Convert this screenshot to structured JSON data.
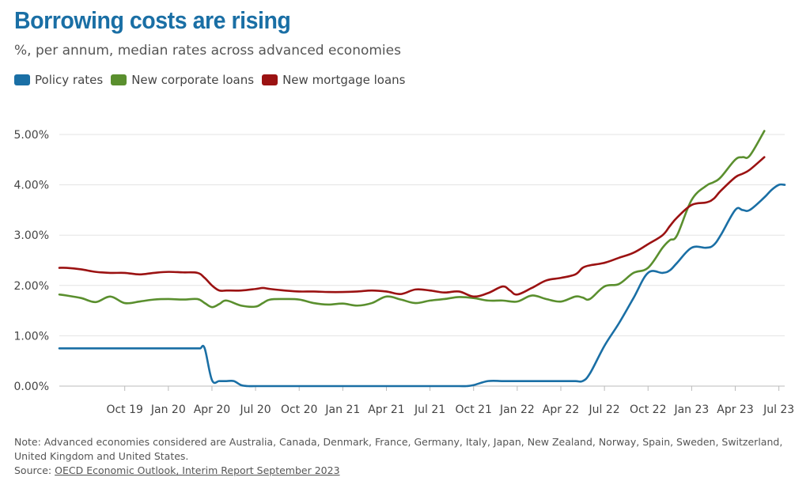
{
  "header": {
    "title": "Borrowing costs are rising",
    "subtitle": "%, per annum, median rates across advanced economies"
  },
  "legend": [
    {
      "label": "Policy rates",
      "color": "#1a6fa5"
    },
    {
      "label": "New corporate loans",
      "color": "#5a8f2e"
    },
    {
      "label": "New mortgage loans",
      "color": "#9b1212"
    }
  ],
  "footer": {
    "note": "Note: Advanced economies considered are Australia, Canada, Denmark, France, Germany, Italy, Japan, New Zealand, Norway, Spain, Sweden, Switzerland, United Kingdom and United States.",
    "source_prefix": "Source: ",
    "source_link": "OECD Economic Outlook, Interim Report September 2023"
  },
  "chart_data": {
    "type": "line",
    "title": "Borrowing costs are rising",
    "ylabel": "%, per annum",
    "ylim": [
      0,
      5
    ],
    "yticks": [
      0,
      1,
      2,
      3,
      4,
      5
    ],
    "ytick_labels": [
      "0.00%",
      "1.00%",
      "2.00%",
      "3.00%",
      "4.00%",
      "5.00%"
    ],
    "x_unit": "months since Jan 2019",
    "xlim": [
      4.5,
      54.4
    ],
    "xticks": [
      {
        "x": 9,
        "label": "Oct 19"
      },
      {
        "x": 12,
        "label": "Jan 20"
      },
      {
        "x": 15,
        "label": "Apr 20"
      },
      {
        "x": 18,
        "label": "Jul 20"
      },
      {
        "x": 21,
        "label": "Oct 20"
      },
      {
        "x": 24,
        "label": "Jan 21"
      },
      {
        "x": 27,
        "label": "Apr 21"
      },
      {
        "x": 30,
        "label": "Jul 21"
      },
      {
        "x": 33,
        "label": "Oct 21"
      },
      {
        "x": 36,
        "label": "Jan 22"
      },
      {
        "x": 39,
        "label": "Apr 22"
      },
      {
        "x": 42,
        "label": "Jul 22"
      },
      {
        "x": 45,
        "label": "Oct 22"
      },
      {
        "x": 48,
        "label": "Jan 23"
      },
      {
        "x": 51,
        "label": "Apr 23"
      },
      {
        "x": 54,
        "label": "Jul 23"
      }
    ],
    "series": [
      {
        "name": "Policy rates",
        "color": "#1a6fa5",
        "x": [
          4.5,
          5,
          6,
          7,
          8,
          9,
          10,
          11,
          12,
          13,
          14,
          14.2,
          14.5,
          15,
          15.5,
          16,
          16.5,
          17,
          17.5,
          18,
          19,
          20,
          21,
          22,
          23,
          24,
          25,
          26,
          27,
          28,
          29,
          30,
          31,
          32,
          32.5,
          33,
          34,
          35,
          36,
          37,
          38,
          39,
          40,
          40.5,
          41,
          42,
          43,
          44,
          45,
          46,
          46.5,
          47,
          48,
          49,
          49.5,
          50,
          51,
          51.5,
          52,
          53,
          53.5,
          54,
          54.4
        ],
        "y": [
          0.75,
          0.75,
          0.75,
          0.75,
          0.75,
          0.75,
          0.75,
          0.75,
          0.75,
          0.75,
          0.75,
          0.75,
          0.75,
          0.12,
          0.1,
          0.1,
          0.1,
          0.02,
          0,
          0,
          0,
          0,
          0,
          0,
          0,
          0,
          0,
          0,
          0,
          0,
          0,
          0,
          0,
          0,
          0,
          0.02,
          0.1,
          0.1,
          0.1,
          0.1,
          0.1,
          0.1,
          0.1,
          0.1,
          0.25,
          0.8,
          1.25,
          1.75,
          2.25,
          2.25,
          2.3,
          2.45,
          2.75,
          2.75,
          2.8,
          3.0,
          3.5,
          3.5,
          3.5,
          3.75,
          3.9,
          4.0,
          4.0
        ]
      },
      {
        "name": "New corporate loans",
        "color": "#5a8f2e",
        "x": [
          4.5,
          5,
          6,
          7,
          8,
          9,
          10,
          11,
          12,
          13,
          14,
          14.5,
          15,
          15.5,
          16,
          17,
          18,
          18.5,
          19,
          20,
          21,
          22,
          23,
          24,
          25,
          26,
          27,
          28,
          29,
          30,
          31,
          32,
          33,
          34,
          35,
          36,
          37,
          38,
          39,
          40,
          40.5,
          41,
          42,
          43,
          44,
          45,
          46,
          46.5,
          47,
          48,
          49,
          49.5,
          50,
          51,
          51.5,
          52,
          53
        ],
        "y": [
          1.82,
          1.8,
          1.75,
          1.67,
          1.78,
          1.65,
          1.68,
          1.72,
          1.73,
          1.72,
          1.73,
          1.65,
          1.57,
          1.63,
          1.7,
          1.6,
          1.58,
          1.65,
          1.72,
          1.73,
          1.72,
          1.65,
          1.62,
          1.64,
          1.6,
          1.65,
          1.78,
          1.72,
          1.65,
          1.7,
          1.73,
          1.77,
          1.75,
          1.7,
          1.7,
          1.68,
          1.8,
          1.73,
          1.68,
          1.78,
          1.76,
          1.73,
          1.98,
          2.03,
          2.25,
          2.35,
          2.75,
          2.9,
          3.0,
          3.7,
          3.98,
          4.05,
          4.15,
          4.5,
          4.55,
          4.58,
          5.07
        ]
      },
      {
        "name": "New mortgage loans",
        "color": "#9b1212",
        "x": [
          4.5,
          5,
          6,
          7,
          8,
          9,
          10,
          11,
          12,
          13,
          14,
          14.5,
          15,
          15.5,
          16,
          17,
          18,
          18.5,
          19,
          20,
          21,
          22,
          23,
          24,
          25,
          26,
          27,
          28,
          29,
          30,
          31,
          32,
          33,
          34,
          35,
          35.5,
          36,
          37,
          38,
          39,
          40,
          40.5,
          41,
          42,
          43,
          44,
          45,
          46,
          46.5,
          47,
          48,
          49,
          49.5,
          50,
          51,
          51.5,
          52,
          53
        ],
        "y": [
          2.35,
          2.35,
          2.32,
          2.27,
          2.25,
          2.25,
          2.22,
          2.25,
          2.27,
          2.26,
          2.25,
          2.15,
          2.0,
          1.9,
          1.9,
          1.9,
          1.93,
          1.95,
          1.93,
          1.9,
          1.88,
          1.88,
          1.87,
          1.87,
          1.88,
          1.9,
          1.88,
          1.83,
          1.92,
          1.9,
          1.86,
          1.88,
          1.78,
          1.85,
          1.98,
          1.9,
          1.82,
          1.95,
          2.1,
          2.15,
          2.22,
          2.35,
          2.4,
          2.45,
          2.55,
          2.65,
          2.82,
          3.0,
          3.18,
          3.35,
          3.6,
          3.65,
          3.72,
          3.88,
          4.15,
          4.22,
          4.3,
          4.55
        ]
      }
    ]
  }
}
